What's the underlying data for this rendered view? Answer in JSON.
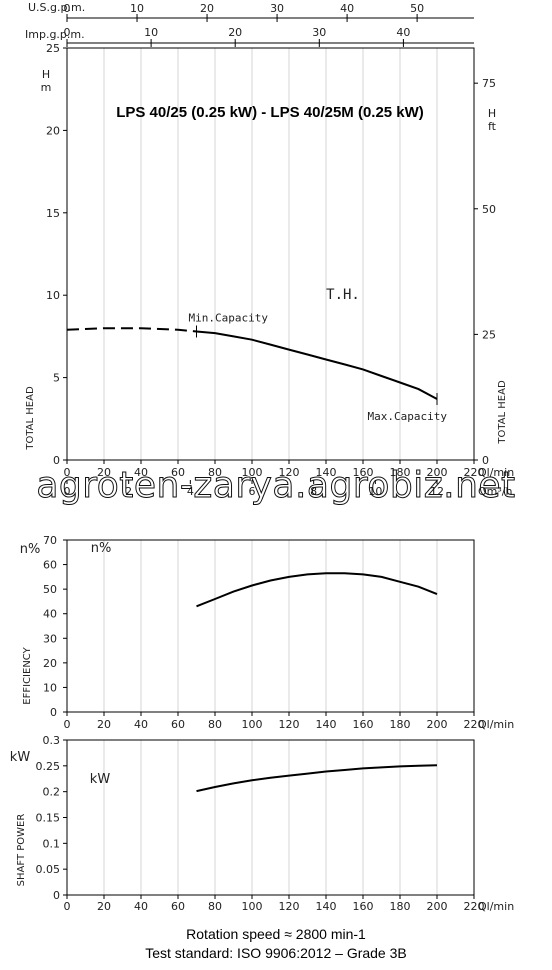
{
  "chart_data": [
    {
      "type": "line",
      "title": "LPS 40/25 (0.25 kW) - LPS 40/25M (0.25 kW)",
      "top_axis_1": {
        "label": "U.S.g.p.m.",
        "ticks": [
          "0",
          "10",
          "20",
          "30",
          "40",
          "50"
        ]
      },
      "top_axis_2": {
        "label": "Imp.g.p.m.",
        "ticks": [
          "0",
          "10",
          "20",
          "30",
          "40"
        ]
      },
      "left_axis": {
        "unit": "H\nm",
        "label": "TOTAL HEAD",
        "ticks": [
          "0",
          "5",
          "10",
          "15",
          "20",
          "25"
        ],
        "ylim": [
          0,
          25
        ]
      },
      "right_axis": {
        "unit": "H\nft",
        "label": "TOTAL HEAD",
        "ticks": [
          "0",
          "25",
          "50",
          "75"
        ],
        "ylim": [
          0,
          82
        ]
      },
      "bottom_axis_1": {
        "label": "Ql/min",
        "ticks": [
          "0",
          "20",
          "40",
          "60",
          "80",
          "100",
          "120",
          "140",
          "160",
          "180",
          "200",
          "220"
        ],
        "xlim": [
          0,
          220
        ]
      },
      "bottom_axis_2": {
        "label": "Qm³/h",
        "ticks": [
          "0",
          "2",
          "4",
          "6",
          "8",
          "10",
          "12"
        ]
      },
      "curve_label": "T.H.",
      "annotations": {
        "min": "Min.Capacity",
        "max": "Max.Capacity"
      },
      "series": [
        {
          "name": "T.H.",
          "x": [
            70,
            80,
            90,
            100,
            110,
            120,
            130,
            140,
            150,
            160,
            170,
            180,
            190,
            200
          ],
          "y": [
            7.8,
            7.7,
            7.5,
            7.3,
            7.0,
            6.7,
            6.4,
            6.1,
            5.8,
            5.5,
            5.1,
            4.7,
            4.3,
            3.7
          ]
        }
      ],
      "dashed_segment": {
        "x": [
          0,
          20,
          40,
          60,
          70
        ],
        "y": [
          7.9,
          8.0,
          8.0,
          7.9,
          7.8
        ]
      },
      "min_capacity_x": 70,
      "max_capacity_x": 200
    },
    {
      "type": "line",
      "left_unit": "n%",
      "inner_label": "n%",
      "ylabel": "EFFICIENCY",
      "xlabel": "Ql/min",
      "xlim": [
        0,
        220
      ],
      "ylim": [
        0,
        70
      ],
      "yticks": [
        "0",
        "10",
        "20",
        "30",
        "40",
        "50",
        "60",
        "70"
      ],
      "xticks": [
        "0",
        "20",
        "40",
        "60",
        "80",
        "100",
        "120",
        "140",
        "160",
        "180",
        "200",
        "220"
      ],
      "series": [
        {
          "name": "n%",
          "x": [
            70,
            80,
            90,
            100,
            110,
            120,
            130,
            140,
            150,
            160,
            170,
            180,
            190,
            200
          ],
          "y": [
            43,
            46,
            49,
            51.5,
            53.5,
            55,
            56,
            56.5,
            56.5,
            56,
            55,
            53,
            51,
            48
          ]
        }
      ]
    },
    {
      "type": "line",
      "left_unit": "kW",
      "inner_label": "kW",
      "ylabel": "SHAFT POWER",
      "xlabel": "Ql/min",
      "xlim": [
        0,
        220
      ],
      "ylim": [
        0,
        0.3
      ],
      "yticks": [
        "0",
        "0.05",
        "0.1",
        "0.15",
        "0.2",
        "0.25",
        "0.3"
      ],
      "xticks": [
        "0",
        "20",
        "40",
        "60",
        "80",
        "100",
        "120",
        "140",
        "160",
        "180",
        "200",
        "220"
      ],
      "series": [
        {
          "name": "kW",
          "x": [
            70,
            80,
            90,
            100,
            110,
            120,
            130,
            140,
            150,
            160,
            170,
            180,
            190,
            200
          ],
          "y": [
            0.201,
            0.209,
            0.216,
            0.222,
            0.227,
            0.231,
            0.235,
            0.239,
            0.242,
            0.245,
            0.247,
            0.249,
            0.25,
            0.251
          ]
        }
      ]
    }
  ],
  "watermark": "agroten-zarya.agrobiz.net",
  "footer": {
    "line1": "Rotation speed ≈ 2800 min-1",
    "line2": "Test standard: ISO 9906:2012 – Grade 3B"
  }
}
